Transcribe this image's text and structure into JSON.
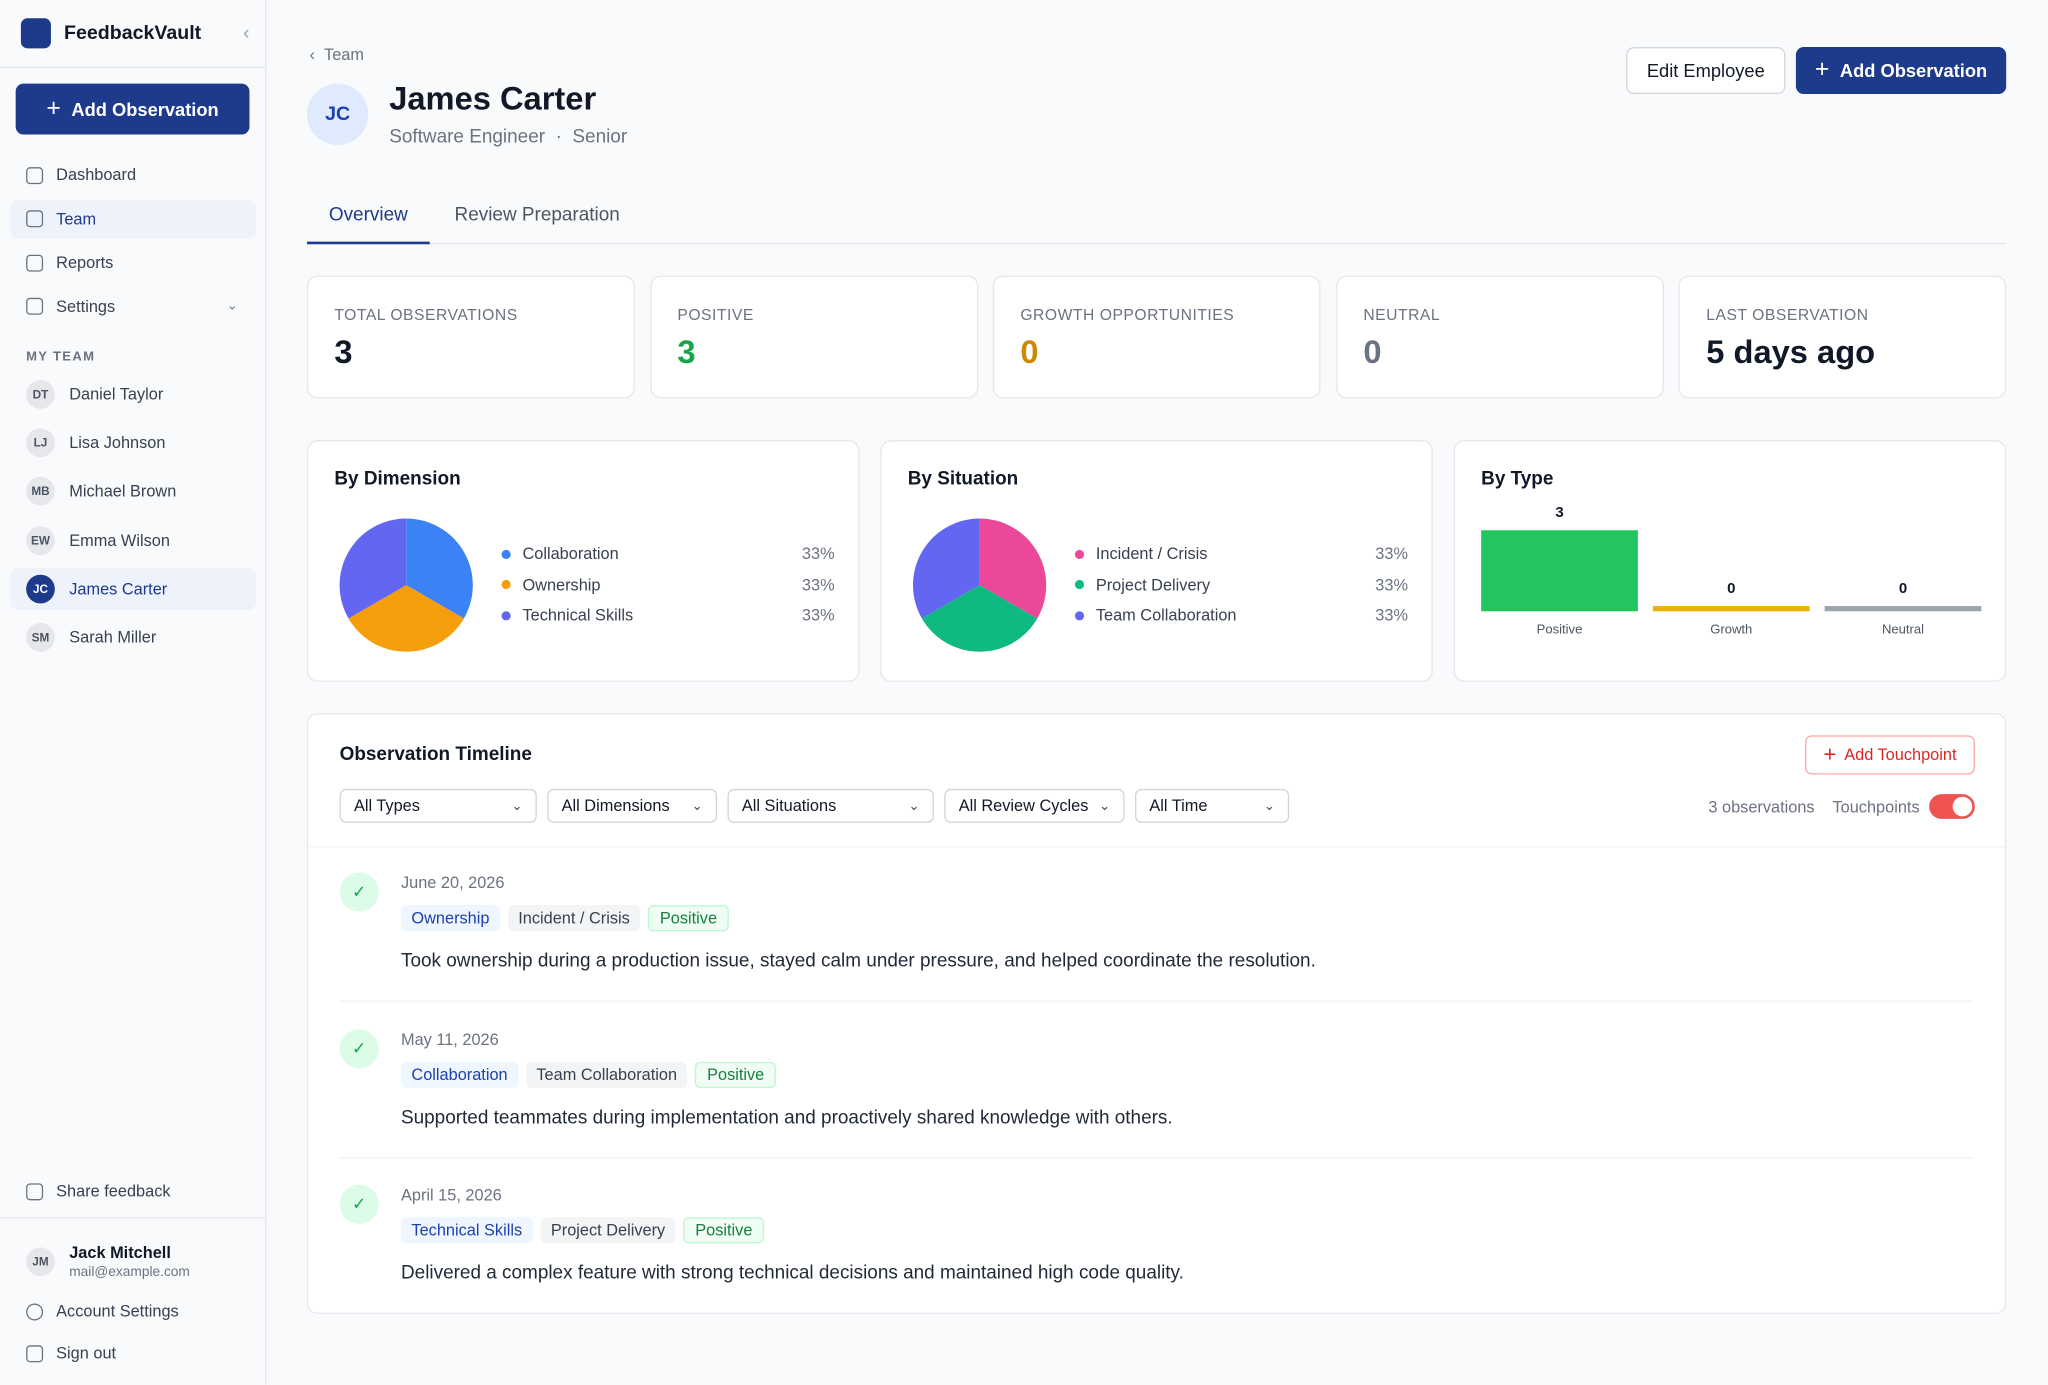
{
  "sidebar": {
    "brand": "FeedbackVault",
    "primary_action": "Add Observation",
    "nav": [
      "Dashboard",
      "Team",
      "Reports",
      "Settings"
    ],
    "team_heading": "MY TEAM",
    "team": [
      {
        "initials": "DT",
        "name": "Daniel Taylor"
      },
      {
        "initials": "LJ",
        "name": "Lisa Johnson"
      },
      {
        "initials": "MB",
        "name": "Michael Brown"
      },
      {
        "initials": "EW",
        "name": "Emma Wilson"
      },
      {
        "initials": "JC",
        "name": "James Carter"
      },
      {
        "initials": "SM",
        "name": "Sarah Miller"
      }
    ],
    "share": "Share feedback",
    "user": {
      "initials": "JM",
      "name": "Jack Mitchell",
      "email": "mail@example.com"
    },
    "account": "Account Settings",
    "sign_out": "Sign out"
  },
  "header": {
    "breadcrumb": "Team",
    "initials": "JC",
    "name": "James Carter",
    "role": "Software Engineer",
    "level": "Senior",
    "actions": [
      "Edit Employee",
      "Add Observation"
    ]
  },
  "tabs": [
    "Overview",
    "Review Preparation"
  ],
  "stats": [
    {
      "label": "TOTAL OBSERVATIONS",
      "value": 3
    },
    {
      "label": "POSITIVE",
      "value": 3
    },
    {
      "label": "GROWTH OPPORTUNITIES",
      "value": 0
    },
    {
      "label": "NEUTRAL",
      "value": 0
    },
    {
      "label": "LAST OBSERVATION",
      "value": "5 days ago"
    }
  ],
  "charts": [
    {
      "type": "pie",
      "title": "By Dimension",
      "categories": [
        "Collaboration",
        "Ownership",
        "Technical Skills"
      ],
      "values": [
        33,
        33,
        33
      ],
      "value_labels": [
        "33%",
        "33%",
        "33%"
      ],
      "colors": [
        "#3b82f6",
        "#f59e0b",
        "#6366f1"
      ]
    },
    {
      "type": "pie",
      "title": "By Situation",
      "categories": [
        "Incident / Crisis",
        "Project Delivery",
        "Team Collaboration"
      ],
      "values": [
        33,
        33,
        33
      ],
      "value_labels": [
        "33%",
        "33%",
        "33%"
      ],
      "colors": [
        "#ec4899",
        "#10b981",
        "#6366f1"
      ]
    },
    {
      "type": "bar",
      "title": "By Type",
      "categories": [
        "Positive",
        "Growth",
        "Neutral"
      ],
      "values": [
        3,
        0,
        0
      ],
      "colors": [
        "#22c55e",
        "#eab308",
        "#9ca3af"
      ]
    }
  ],
  "timeline": {
    "title": "Observation Timeline",
    "add": "Add Touchpoint",
    "filters": [
      "All Types",
      "All Dimensions",
      "All Situations",
      "All Review Cycles",
      "All Time"
    ],
    "count": "3 observations",
    "toggle": "Touchpoints",
    "items": [
      {
        "date": "June 20, 2026",
        "tags": [
          "Ownership",
          "Incident / Crisis",
          "Positive"
        ],
        "text": "Took ownership during a production issue, stayed calm under pressure, and helped coordinate the resolution."
      },
      {
        "date": "May 11, 2026",
        "tags": [
          "Collaboration",
          "Team Collaboration",
          "Positive"
        ],
        "text": "Supported teammates during implementation and proactively shared knowledge with others."
      },
      {
        "date": "April 15, 2026",
        "tags": [
          "Technical Skills",
          "Project Delivery",
          "Positive"
        ],
        "text": "Delivered a complex feature with strong technical decisions and maintained high code quality."
      }
    ]
  }
}
